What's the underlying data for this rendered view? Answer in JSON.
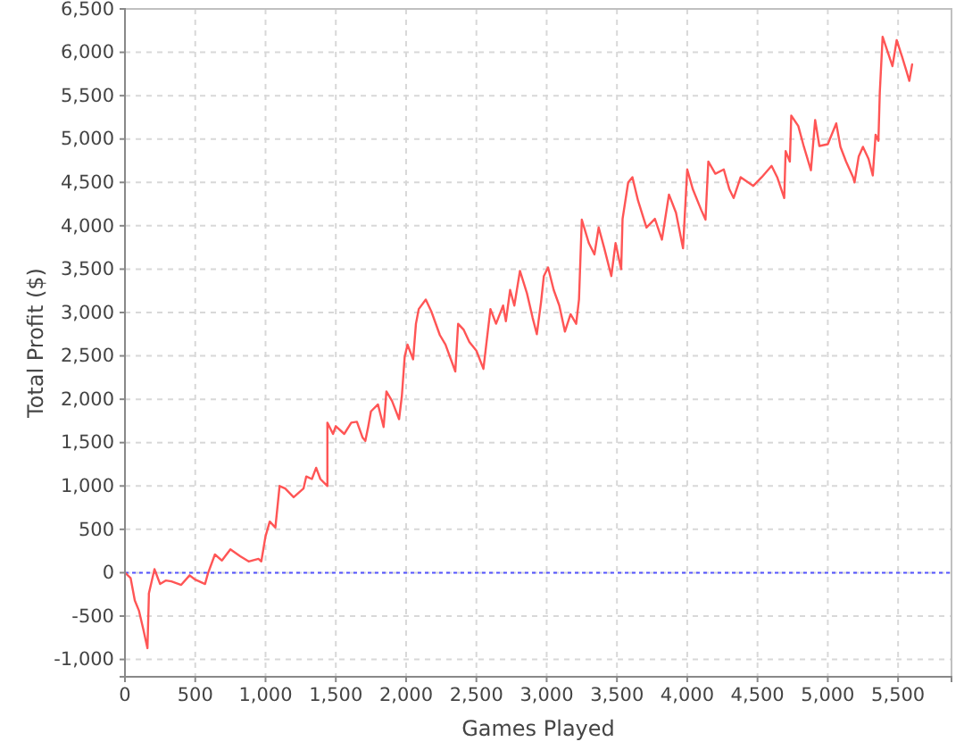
{
  "chart_data": {
    "type": "line",
    "xlabel": "Games Played",
    "ylabel": "Total Profit ($)",
    "xlim": [
      0,
      5880
    ],
    "ylim": [
      -1200,
      6500
    ],
    "xticks": [
      {
        "value": 0,
        "label": "0"
      },
      {
        "value": 500,
        "label": "500"
      },
      {
        "value": 1000,
        "label": "1,000"
      },
      {
        "value": 1500,
        "label": "1,500"
      },
      {
        "value": 2000,
        "label": "2,000"
      },
      {
        "value": 2500,
        "label": "2,500"
      },
      {
        "value": 3000,
        "label": "3,000"
      },
      {
        "value": 3500,
        "label": "3,500"
      },
      {
        "value": 4000,
        "label": "4,000"
      },
      {
        "value": 4500,
        "label": "4,500"
      },
      {
        "value": 5000,
        "label": "5,000"
      },
      {
        "value": 5500,
        "label": "5,500"
      }
    ],
    "yticks": [
      {
        "value": -1000,
        "label": "-1,000"
      },
      {
        "value": -500,
        "label": "-500"
      },
      {
        "value": 0,
        "label": "0"
      },
      {
        "value": 500,
        "label": "500"
      },
      {
        "value": 1000,
        "label": "1,000"
      },
      {
        "value": 1500,
        "label": "1,500"
      },
      {
        "value": 2000,
        "label": "2,000"
      },
      {
        "value": 2500,
        "label": "2,500"
      },
      {
        "value": 3000,
        "label": "3,000"
      },
      {
        "value": 3500,
        "label": "3,500"
      },
      {
        "value": 4000,
        "label": "4,000"
      },
      {
        "value": 4500,
        "label": "4,500"
      },
      {
        "value": 5000,
        "label": "5,000"
      },
      {
        "value": 5500,
        "label": "5,500"
      },
      {
        "value": 6000,
        "label": "6,000"
      },
      {
        "value": 6500,
        "label": "6,500"
      }
    ],
    "grid": true,
    "ref_lines": [
      {
        "axis": "y",
        "value": 0,
        "color": "#5555ff",
        "line_style": "dotted"
      }
    ],
    "series": [
      {
        "color": "#ff5555",
        "x": [
          0,
          40,
          70,
          100,
          130,
          160,
          170,
          170,
          210,
          250,
          290,
          330,
          400,
          460,
          500,
          570,
          590,
          640,
          690,
          750,
          820,
          880,
          950,
          970,
          1000,
          1030,
          1070,
          1100,
          1140,
          1200,
          1270,
          1290,
          1330,
          1360,
          1390,
          1440,
          1440,
          1480,
          1500,
          1560,
          1610,
          1650,
          1690,
          1710,
          1730,
          1750,
          1800,
          1840,
          1860,
          1900,
          1950,
          1970,
          1990,
          2010,
          2050,
          2070,
          2090,
          2140,
          2180,
          2240,
          2280,
          2350,
          2370,
          2410,
          2450,
          2500,
          2550,
          2600,
          2640,
          2690,
          2710,
          2740,
          2770,
          2810,
          2860,
          2900,
          2930,
          2960,
          2980,
          3010,
          3050,
          3090,
          3130,
          3170,
          3210,
          3230,
          3250,
          3300,
          3340,
          3370,
          3410,
          3460,
          3490,
          3530,
          3540,
          3580,
          3610,
          3650,
          3710,
          3770,
          3820,
          3870,
          3920,
          3970,
          4000,
          4040,
          4100,
          4130,
          4150,
          4200,
          4260,
          4300,
          4330,
          4380,
          4470,
          4530,
          4600,
          4640,
          4690,
          4700,
          4730,
          4740,
          4790,
          4830,
          4880,
          4910,
          4940,
          5000,
          5060,
          5090,
          5130,
          5180,
          5190,
          5220,
          5250,
          5290,
          5320,
          5340,
          5360,
          5370,
          5390,
          5460,
          5490,
          5530,
          5560,
          5580,
          5600
        ],
        "values": [
          0,
          -60,
          -320,
          -440,
          -650,
          -870,
          -270,
          -240,
          40,
          -130,
          -90,
          -100,
          -140,
          -30,
          -80,
          -130,
          -10,
          210,
          140,
          270,
          190,
          130,
          160,
          130,
          420,
          590,
          520,
          1000,
          970,
          870,
          970,
          1110,
          1080,
          1210,
          1080,
          1000,
          1730,
          1600,
          1690,
          1600,
          1730,
          1740,
          1560,
          1520,
          1680,
          1860,
          1940,
          1680,
          2090,
          1980,
          1770,
          2040,
          2490,
          2630,
          2460,
          2870,
          3040,
          3150,
          3010,
          2740,
          2630,
          2320,
          2870,
          2800,
          2660,
          2560,
          2350,
          3040,
          2870,
          3080,
          2900,
          3260,
          3080,
          3480,
          3220,
          2940,
          2750,
          3120,
          3420,
          3520,
          3260,
          3080,
          2780,
          2980,
          2870,
          3150,
          4070,
          3800,
          3670,
          3980,
          3740,
          3420,
          3800,
          3500,
          4080,
          4500,
          4560,
          4290,
          3980,
          4080,
          3840,
          4360,
          4150,
          3740,
          4650,
          4420,
          4180,
          4070,
          4740,
          4600,
          4650,
          4420,
          4320,
          4560,
          4460,
          4560,
          4690,
          4560,
          4320,
          4860,
          4740,
          5270,
          5150,
          4910,
          4640,
          5220,
          4920,
          4940,
          5180,
          4910,
          4740,
          4560,
          4500,
          4800,
          4910,
          4770,
          4580,
          5050,
          4980,
          5540,
          6180,
          5840,
          6140,
          5940,
          5780,
          5670,
          5860
        ]
      }
    ]
  }
}
